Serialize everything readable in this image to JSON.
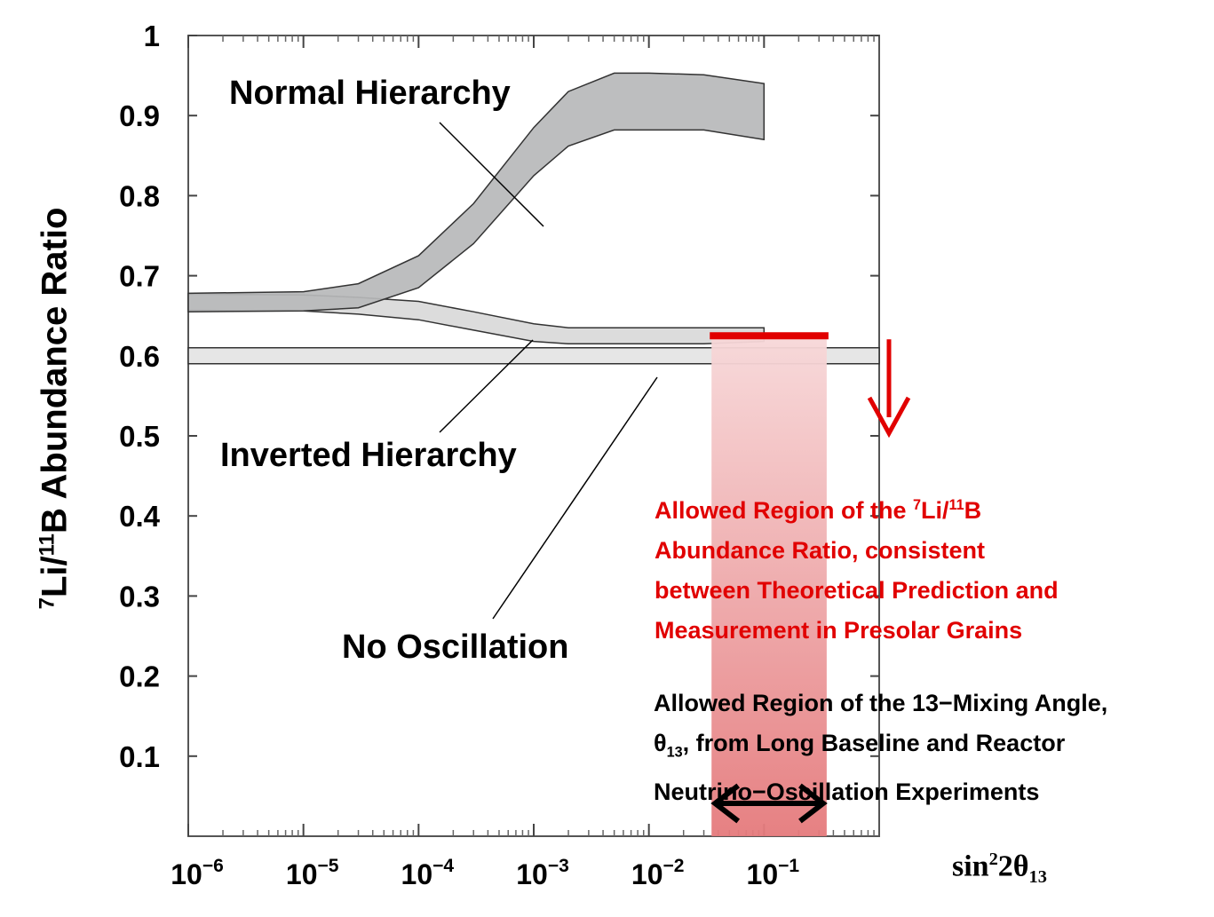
{
  "chart_data": {
    "type": "area",
    "x_scale": "log",
    "xlim": [
      1e-06,
      1
    ],
    "ylim": [
      0,
      1
    ],
    "y_ticks": [
      0.1,
      0.2,
      0.3,
      0.4,
      0.5,
      0.6,
      0.7,
      0.8,
      0.9,
      1
    ],
    "y_tick_labels": [
      "0.1",
      "0.2",
      "0.3",
      "0.4",
      "0.5",
      "0.6",
      "0.7",
      "0.8",
      "0.9",
      "1"
    ],
    "x_ticks": [
      {
        "value": 1e-06,
        "base": "10",
        "exp": "−6"
      },
      {
        "value": 1e-05,
        "base": "10",
        "exp": "−5"
      },
      {
        "value": 0.0001,
        "base": "10",
        "exp": "−4"
      },
      {
        "value": 0.001,
        "base": "10",
        "exp": "−3"
      },
      {
        "value": 0.01,
        "base": "10",
        "exp": "−2"
      },
      {
        "value": 0.1,
        "base": "10",
        "exp": "−1"
      }
    ],
    "ylabel": {
      "sup1": "7",
      "mid": "Li/",
      "sup2": "11",
      "rest": "B Abundance Ratio"
    },
    "xlabel": {
      "pre": "sin",
      "sup": "2",
      "mid": "2θ",
      "sub": "13"
    },
    "series": [
      {
        "name": "Normal Hierarchy",
        "color": "#b7b8ba",
        "x": [
          1e-06,
          1e-05,
          3e-05,
          0.0001,
          0.0003,
          0.001,
          0.002,
          0.005,
          0.01,
          0.03,
          0.1
        ],
        "upper": [
          0.678,
          0.68,
          0.69,
          0.725,
          0.79,
          0.885,
          0.93,
          0.953,
          0.953,
          0.951,
          0.94
        ],
        "lower": [
          0.655,
          0.656,
          0.66,
          0.685,
          0.74,
          0.825,
          0.862,
          0.882,
          0.882,
          0.882,
          0.87
        ]
      },
      {
        "name": "Inverted Hierarchy",
        "color": "#dcdcdc",
        "x": [
          1e-06,
          1e-05,
          3e-05,
          0.0001,
          0.0003,
          0.001,
          0.002,
          0.005,
          0.01,
          0.03,
          0.1
        ],
        "upper": [
          0.677,
          0.676,
          0.673,
          0.668,
          0.655,
          0.64,
          0.635,
          0.635,
          0.635,
          0.635,
          0.635
        ],
        "lower": [
          0.657,
          0.656,
          0.652,
          0.645,
          0.632,
          0.618,
          0.615,
          0.615,
          0.615,
          0.615,
          0.618
        ]
      },
      {
        "name": "No Oscillation",
        "color": "#e6e6e6",
        "x": [
          1e-06,
          1
        ],
        "upper": [
          0.61,
          0.61
        ],
        "lower": [
          0.59,
          0.59
        ]
      }
    ],
    "annotations": {
      "normal": "Normal Hierarchy",
      "inverted": "Inverted Hierarchy",
      "none": "No Oscillation"
    },
    "allowed_region": {
      "color": "#e10000",
      "x_range": [
        0.035,
        0.35
      ],
      "ratio_upper_limit": 0.625,
      "ratio_note": {
        "l1a": "Allowed Region of the ",
        "s1": "7",
        "l1b": "Li/",
        "s2": "11",
        "l1c": "B",
        "rest": "Abundance Ratio, consistent\nbetween Theoretical Prediction and\nMeasurement in Presolar Grains"
      },
      "angle_note": {
        "l1": "Allowed Region of the 13−Mixing Angle,",
        "theta": "θ",
        "sub": "13",
        "l2": ", from Long Baseline and Reactor",
        "l3": "Neutrino−Oscillation Experiments"
      }
    }
  }
}
